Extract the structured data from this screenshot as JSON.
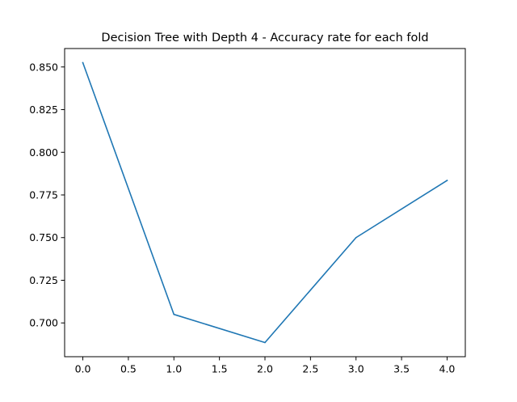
{
  "chart_data": {
    "type": "line",
    "title": "Decision Tree with Depth 4 - Accuracy rate for each fold",
    "xlabel": "",
    "ylabel": "",
    "x": [
      0,
      1,
      2,
      3,
      4
    ],
    "series": [
      {
        "values": [
          0.8525,
          0.705,
          0.6885,
          0.75,
          0.7835
        ],
        "color": "#1f77b4"
      }
    ],
    "xlim": [
      -0.2,
      4.2
    ],
    "ylim": [
      0.6802,
      0.8608
    ],
    "xticks": [
      0.0,
      0.5,
      1.0,
      1.5,
      2.0,
      2.5,
      3.0,
      3.5,
      4.0
    ],
    "xtick_labels": [
      "0.0",
      "0.5",
      "1.0",
      "1.5",
      "2.0",
      "2.5",
      "3.0",
      "3.5",
      "4.0"
    ],
    "yticks": [
      0.7,
      0.725,
      0.75,
      0.775,
      0.8,
      0.825,
      0.85
    ],
    "ytick_labels": [
      "0.700",
      "0.725",
      "0.750",
      "0.775",
      "0.800",
      "0.825",
      "0.850"
    ],
    "grid": false,
    "legend": false
  }
}
